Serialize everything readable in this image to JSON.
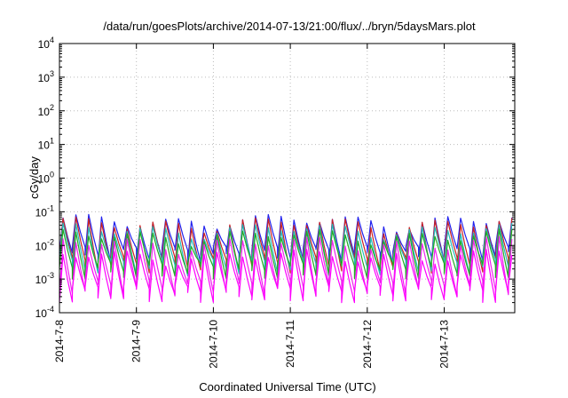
{
  "chart_data": {
    "type": "line",
    "title": "/data/run/goesPlots/archive/2014-07-13/21:00/flux/../bryn/5daysMars.plot",
    "xlabel": "Coordinated Universal Time (UTC)",
    "ylabel": "cGy/day",
    "yscale": "log",
    "ylim": [
      0.0001,
      10000
    ],
    "xlim": [
      "2014-07-08T00:00",
      "2014-07-13T22:00"
    ],
    "x_ticks": [
      "2014-7-8",
      "2014-7-9",
      "2014-7-10",
      "2014-7-11",
      "2014-7-12",
      "2014-7-13"
    ],
    "y_ticks": [
      {
        "base": "10",
        "exp": "-4"
      },
      {
        "base": "10",
        "exp": "-3"
      },
      {
        "base": "10",
        "exp": "-2"
      },
      {
        "base": "10",
        "exp": "-1"
      },
      {
        "base": "10",
        "exp": "0"
      },
      {
        "base": "10",
        "exp": "1"
      },
      {
        "base": "10",
        "exp": "2"
      },
      {
        "base": "10",
        "exp": "3"
      },
      {
        "base": "10",
        "exp": "4"
      }
    ],
    "grid": true,
    "cycle_hours": 4,
    "pattern": "sawtooth: each ~4 h cycle rises sharply from a trough to a peak then decays; cycles repeat across the whole window",
    "series": [
      {
        "color": "#2222ee",
        "peak": 0.055,
        "trough": 0.006
      },
      {
        "color": "#cc2222",
        "peak": 0.045,
        "trough": 0.003
      },
      {
        "color": "#22bbbb",
        "peak": 0.03,
        "trough": 0.0025
      },
      {
        "color": "#22aa22",
        "peak": 0.02,
        "trough": 0.002
      },
      {
        "color": "#ee22ee",
        "peak": 0.012,
        "trough": 0.0006
      },
      {
        "color": "#ff00ff",
        "peak": 0.005,
        "trough": 0.0004
      }
    ]
  }
}
